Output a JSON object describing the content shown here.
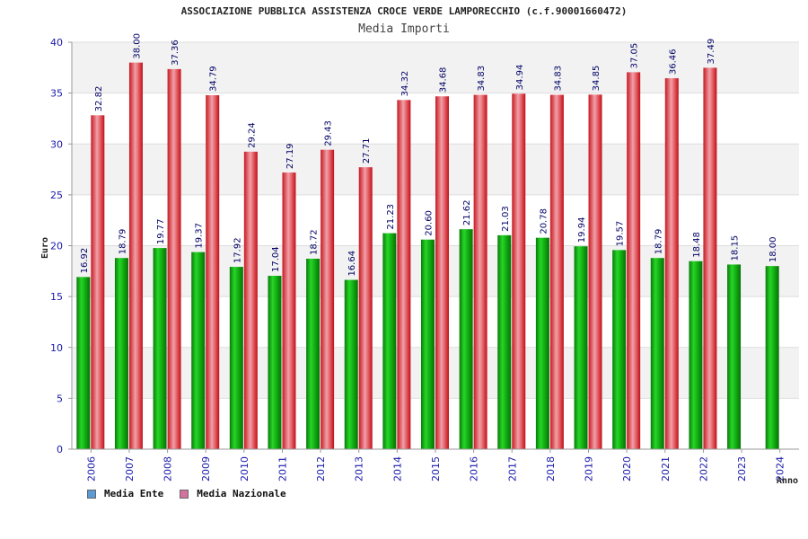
{
  "chart_data": {
    "type": "bar",
    "title": "ASSOCIAZIONE PUBBLICA ASSISTENZA CROCE VERDE LAMPORECCHIO (c.f.90001660472)",
    "subtitle": "Media Importi",
    "xlabel": "Anno",
    "ylabel": "Euro",
    "ylim": [
      0,
      40
    ],
    "yticks": [
      "0",
      "5",
      "10",
      "15",
      "20",
      "25",
      "30",
      "35",
      "40"
    ],
    "categories": [
      "2006",
      "2007",
      "2008",
      "2009",
      "2010",
      "2011",
      "2012",
      "2013",
      "2014",
      "2015",
      "2016",
      "2017",
      "2018",
      "2019",
      "2020",
      "2021",
      "2022",
      "2023",
      "2024"
    ],
    "series": [
      {
        "name": "Media Ente",
        "legend_color": "#5b9bd5",
        "color": "#0fa30f",
        "values": [
          16.92,
          18.79,
          19.77,
          19.37,
          17.92,
          17.04,
          18.72,
          16.64,
          21.23,
          20.6,
          21.62,
          21.03,
          20.78,
          19.94,
          19.57,
          18.79,
          18.48,
          18.15,
          18.0
        ],
        "labels": [
          "16.92",
          "18.79",
          "19.77",
          "19.37",
          "17.92",
          "17.04",
          "18.72",
          "16.64",
          "21.23",
          "20.60",
          "21.62",
          "21.03",
          "20.78",
          "19.94",
          "19.57",
          "18.79",
          "18.48",
          "18.15",
          "18.00"
        ]
      },
      {
        "name": "Media Nazionale",
        "legend_color": "#d4729e",
        "color": "#e3262e",
        "values": [
          32.82,
          38.0,
          37.36,
          34.79,
          29.24,
          27.19,
          29.43,
          27.71,
          34.32,
          34.68,
          34.83,
          34.94,
          34.83,
          34.85,
          37.05,
          36.46,
          37.49,
          null,
          null
        ],
        "labels": [
          "32.82",
          "38.00",
          "37.36",
          "34.79",
          "29.24",
          "27.19",
          "29.43",
          "27.71",
          "34.32",
          "34.68",
          "34.83",
          "34.94",
          "34.83",
          "34.85",
          "37.05",
          "36.46",
          "37.49",
          null,
          null
        ]
      }
    ],
    "legend": "bottom-left",
    "grid": true
  }
}
